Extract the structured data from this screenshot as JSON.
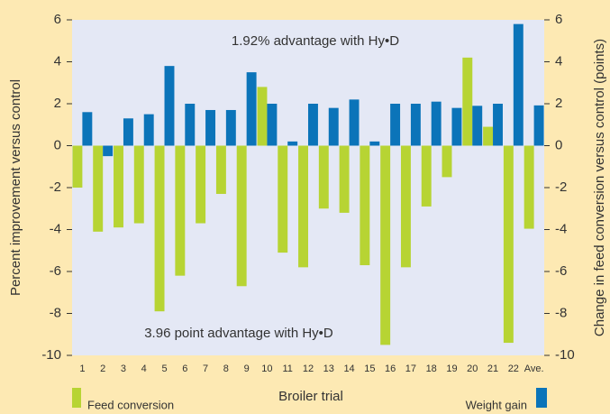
{
  "chart_data": {
    "type": "bar",
    "annotations": [
      "1.92% advantage with Hy•D",
      "3.96 point advantage with Hy•D"
    ],
    "x_label": "Broiler trial",
    "y_label": "Percent improvement versus control",
    "y2_label": "Change in feed conversion versus control (points)",
    "categories": [
      "1",
      "2",
      "3",
      "4",
      "5",
      "6",
      "7",
      "8",
      "9",
      "10",
      "11",
      "12",
      "13",
      "14",
      "15",
      "16",
      "17",
      "18",
      "19",
      "20",
      "21",
      "22",
      "Ave."
    ],
    "series": [
      {
        "name": "Feed conversion",
        "color": "#b7d433",
        "axis": "y2",
        "values": [
          -2.0,
          -4.1,
          -3.9,
          -3.7,
          -7.9,
          -6.2,
          -3.7,
          -2.3,
          -6.7,
          2.8,
          -5.1,
          -5.8,
          -3.0,
          -3.2,
          -5.7,
          -9.5,
          -5.8,
          -2.9,
          -1.5,
          4.2,
          0.9,
          -9.4,
          -3.96
        ]
      },
      {
        "name": "Weight gain",
        "color": "#0b74b9",
        "values": [
          1.6,
          -0.5,
          1.3,
          1.5,
          3.8,
          2.0,
          1.7,
          1.7,
          3.5,
          2.0,
          0.2,
          2.0,
          1.8,
          2.2,
          0.2,
          2.0,
          2.0,
          2.1,
          1.8,
          1.9,
          2.0,
          5.8,
          1.92
        ]
      }
    ],
    "ylim": [
      -10,
      6
    ],
    "yticks": [
      -10,
      -8,
      -6,
      -4,
      -2,
      0,
      2,
      4,
      6
    ],
    "y2lim": [
      -10,
      6
    ],
    "y2ticks": [
      -10,
      -8,
      -6,
      -4,
      -2,
      0,
      2,
      4,
      6
    ]
  }
}
